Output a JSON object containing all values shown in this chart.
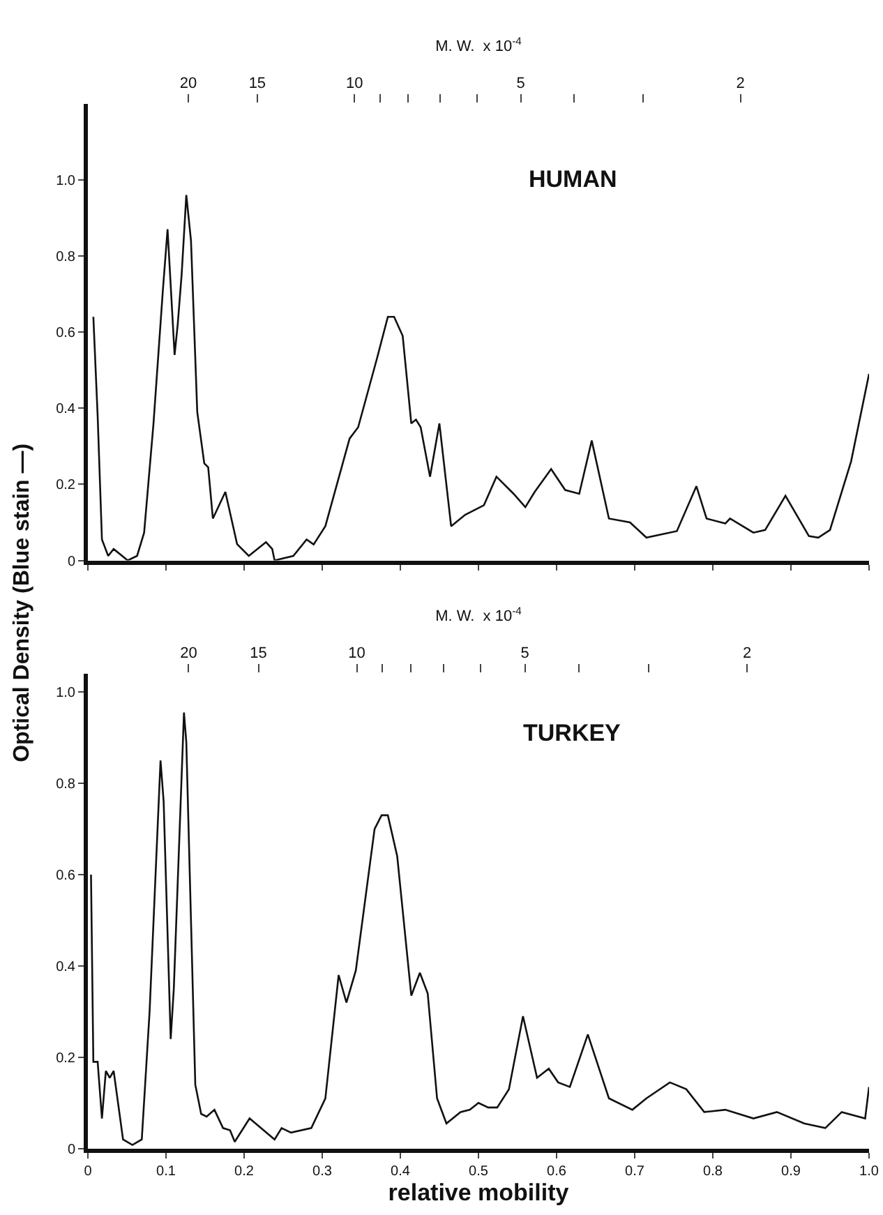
{
  "chart_data": [
    {
      "type": "line",
      "ylabel": "Optical Density (Blue stain —)",
      "annotations": [
        "HUMAN"
      ],
      "color": "#111111",
      "tick_labels": "y",
      "x": [
        0.007,
        0.0125,
        0.018,
        0.026,
        0.033,
        0.051,
        0.063,
        0.072,
        0.084,
        0.096,
        0.102,
        0.111,
        0.115,
        0.12,
        0.126,
        0.132,
        0.14,
        0.149,
        0.154,
        0.16,
        0.176,
        0.191,
        0.206,
        0.228,
        0.236,
        0.239,
        0.263,
        0.28,
        0.289,
        0.304,
        0.335,
        0.346,
        0.37,
        0.384,
        0.392,
        0.403,
        0.414,
        0.42,
        0.426,
        0.438,
        0.45,
        0.465,
        0.483,
        0.507,
        0.523,
        0.545,
        0.56,
        0.572,
        0.593,
        0.611,
        0.629,
        0.645,
        0.667,
        0.694,
        0.715,
        0.754,
        0.779,
        0.792,
        0.816,
        0.822,
        0.852,
        0.867,
        0.893,
        0.923,
        0.935,
        0.95,
        0.977,
        1.0
      ],
      "values": [
        0.64,
        0.38,
        0.055,
        0.012,
        0.03,
        0.0,
        0.012,
        0.073,
        0.36,
        0.71,
        0.87,
        0.54,
        0.62,
        0.75,
        0.96,
        0.84,
        0.39,
        0.255,
        0.245,
        0.11,
        0.18,
        0.043,
        0.012,
        0.048,
        0.03,
        0.0,
        0.012,
        0.055,
        0.042,
        0.09,
        0.32,
        0.35,
        0.53,
        0.64,
        0.64,
        0.59,
        0.36,
        0.37,
        0.35,
        0.22,
        0.36,
        0.09,
        0.12,
        0.145,
        0.22,
        0.175,
        0.14,
        0.18,
        0.24,
        0.185,
        0.175,
        0.315,
        0.11,
        0.1,
        0.06,
        0.077,
        0.195,
        0.11,
        0.097,
        0.11,
        0.073,
        0.08,
        0.17,
        0.064,
        0.06,
        0.08,
        0.26,
        0.49
      ],
      "xlim": [
        0,
        1
      ],
      "xticks": [
        {
          "value": 0,
          "label": null
        },
        {
          "value": 0.1,
          "label": null
        },
        {
          "value": 0.2,
          "label": null
        },
        {
          "value": 0.3,
          "label": null
        },
        {
          "value": 0.4,
          "label": null
        },
        {
          "value": 0.5,
          "label": null
        },
        {
          "value": 0.6,
          "label": null
        },
        {
          "value": 0.7,
          "label": null
        },
        {
          "value": 0.8,
          "label": null
        },
        {
          "value": 0.9,
          "label": null
        },
        {
          "value": 1,
          "label": null
        }
      ],
      "ylim": [
        0,
        1.2
      ],
      "yticks": [
        0,
        0.2,
        0.4,
        0.6,
        0.8,
        {
          "value": 1,
          "label": "1.0"
        }
      ],
      "x2label": "M. W.  x 10$^{-4}$",
      "x2lim": [
        30.4,
        1.17
      ],
      "log": "x2",
      "x2ticks": [
        20,
        15,
        10,
        {
          "value": 9,
          "label": null
        },
        {
          "value": 8,
          "label": null
        },
        {
          "value": 7,
          "label": null
        },
        {
          "value": 6,
          "label": null
        },
        5,
        {
          "value": 4,
          "label": null
        },
        {
          "value": 3,
          "label": null
        },
        2
      ]
    },
    {
      "type": "line",
      "xlabel": "relative mobility",
      "annotations": [
        "TURKEY"
      ],
      "color": "#111111",
      "x": [
        0.004,
        0.007,
        0.0125,
        0.018,
        0.023,
        0.028,
        0.033,
        0.045,
        0.057,
        0.069,
        0.079,
        0.093,
        0.097,
        0.106,
        0.11,
        0.123,
        0.126,
        0.1375,
        0.145,
        0.152,
        0.162,
        0.173,
        0.182,
        0.188,
        0.207,
        0.239,
        0.248,
        0.26,
        0.286,
        0.304,
        0.321,
        0.331,
        0.343,
        0.367,
        0.376,
        0.384,
        0.396,
        0.414,
        0.425,
        0.435,
        0.447,
        0.459,
        0.477,
        0.489,
        0.5,
        0.5125,
        0.524,
        0.539,
        0.557,
        0.575,
        0.59,
        0.602,
        0.617,
        0.64,
        0.667,
        0.697,
        0.715,
        0.745,
        0.766,
        0.789,
        0.816,
        0.852,
        0.882,
        0.917,
        0.944,
        0.965,
        0.995,
        1.0
      ],
      "values": [
        0.6,
        0.19,
        0.19,
        0.066,
        0.17,
        0.155,
        0.17,
        0.02,
        0.008,
        0.02,
        0.3,
        0.85,
        0.76,
        0.24,
        0.35,
        0.955,
        0.89,
        0.14,
        0.076,
        0.07,
        0.085,
        0.045,
        0.04,
        0.015,
        0.066,
        0.02,
        0.045,
        0.035,
        0.045,
        0.11,
        0.38,
        0.32,
        0.39,
        0.7,
        0.73,
        0.73,
        0.64,
        0.335,
        0.385,
        0.34,
        0.11,
        0.055,
        0.08,
        0.085,
        0.1,
        0.09,
        0.09,
        0.13,
        0.29,
        0.155,
        0.175,
        0.145,
        0.135,
        0.25,
        0.11,
        0.085,
        0.11,
        0.145,
        0.13,
        0.08,
        0.085,
        0.066,
        0.08,
        0.055,
        0.045,
        0.08,
        0.066,
        0.135
      ],
      "xlim": [
        0,
        1
      ],
      "xticks": [
        0,
        0.1,
        0.2,
        0.3,
        0.4,
        0.5,
        0.6,
        0.7,
        0.8,
        0.9,
        {
          "value": 1,
          "label": "1.0"
        }
      ],
      "ylim": [
        0,
        1.04
      ],
      "yticks": [
        0,
        0.2,
        0.4,
        0.6,
        0.8,
        {
          "value": 1,
          "label": "1.0"
        }
      ],
      "x2label": "M. W.  x 10$^{-4}$",
      "x2lim": [
        30.3,
        1.21
      ],
      "log": "x2",
      "x2ticks": [
        20,
        15,
        10,
        {
          "value": 9,
          "label": null
        },
        {
          "value": 8,
          "label": null
        },
        {
          "value": 7,
          "label": null
        },
        {
          "value": 6,
          "label": null
        },
        5,
        {
          "value": 4,
          "label": null
        },
        {
          "value": 3,
          "label": null
        },
        2
      ]
    }
  ]
}
